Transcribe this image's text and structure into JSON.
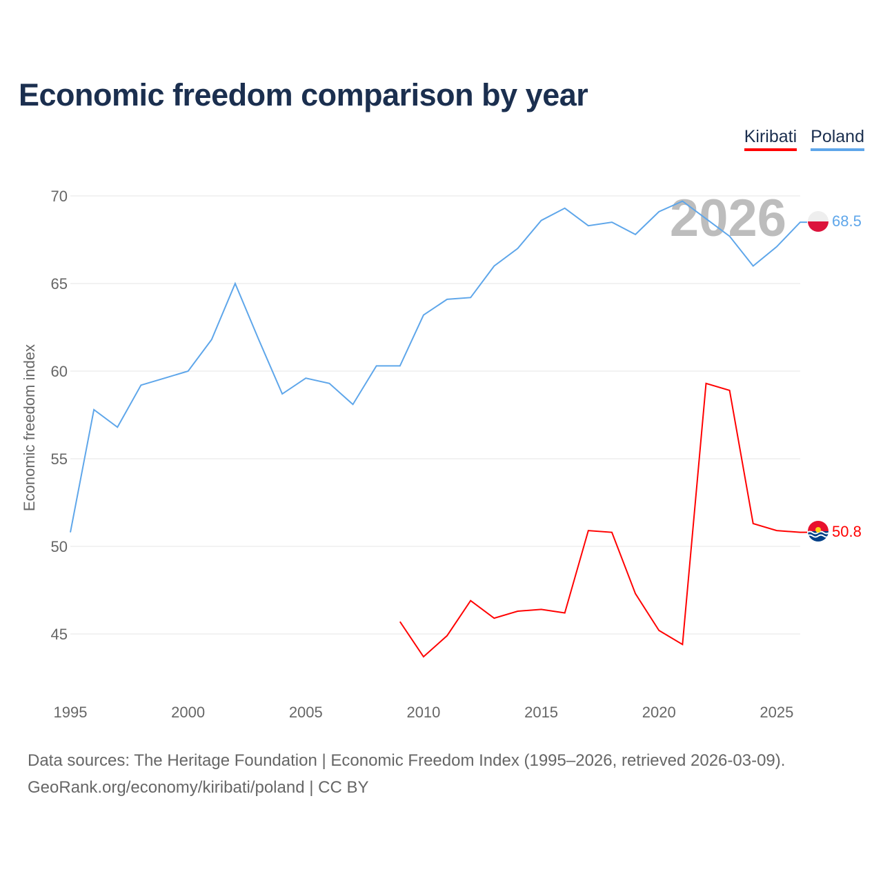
{
  "title": "Economic freedom comparison by year",
  "source_line1": "Data sources: The Heritage Foundation | Economic Freedom Index (1995–2026, retrieved 2026-03-09).",
  "source_line2": "GeoRank.org/economy/kiribati/poland | CC BY",
  "chart_data": {
    "type": "line",
    "title": "Economic freedom comparison by year",
    "xlabel": "",
    "ylabel": "Economic freedom index",
    "xlim": [
      1995,
      2026
    ],
    "ylim": [
      42,
      72
    ],
    "xticks": [
      "1995",
      "2000",
      "2005",
      "2010",
      "2015",
      "2020",
      "2025"
    ],
    "yticks": [
      "45",
      "50",
      "55",
      "60",
      "65",
      "70"
    ],
    "grid": true,
    "legend_position": "top-right",
    "watermark_year": "2026",
    "series": [
      {
        "name": "Kiribati",
        "color": "#ff0000",
        "end_label": "50.8",
        "x": [
          2009,
          2010,
          2011,
          2012,
          2013,
          2014,
          2015,
          2016,
          2017,
          2018,
          2019,
          2020,
          2021,
          2022,
          2023,
          2024,
          2025,
          2026
        ],
        "values": [
          45.7,
          43.7,
          44.9,
          46.9,
          45.9,
          46.3,
          46.4,
          46.2,
          50.9,
          50.8,
          47.3,
          45.2,
          44.4,
          59.3,
          58.9,
          51.3,
          50.9,
          50.8
        ]
      },
      {
        "name": "Poland",
        "color": "#5ea6ea",
        "end_label": "68.5",
        "x": [
          1995,
          1996,
          1997,
          1998,
          1999,
          2000,
          2001,
          2002,
          2003,
          2004,
          2005,
          2006,
          2007,
          2008,
          2009,
          2010,
          2011,
          2012,
          2013,
          2014,
          2015,
          2016,
          2017,
          2018,
          2019,
          2020,
          2021,
          2022,
          2023,
          2024,
          2025,
          2026
        ],
        "values": [
          50.8,
          57.8,
          56.8,
          59.2,
          59.6,
          60.0,
          61.8,
          65.0,
          61.8,
          58.7,
          59.6,
          59.3,
          58.1,
          60.3,
          60.3,
          63.2,
          64.1,
          64.2,
          66.0,
          67.0,
          68.6,
          69.3,
          68.3,
          68.5,
          67.8,
          69.1,
          69.7,
          68.7,
          67.7,
          66.0,
          67.1,
          68.5
        ]
      }
    ]
  }
}
